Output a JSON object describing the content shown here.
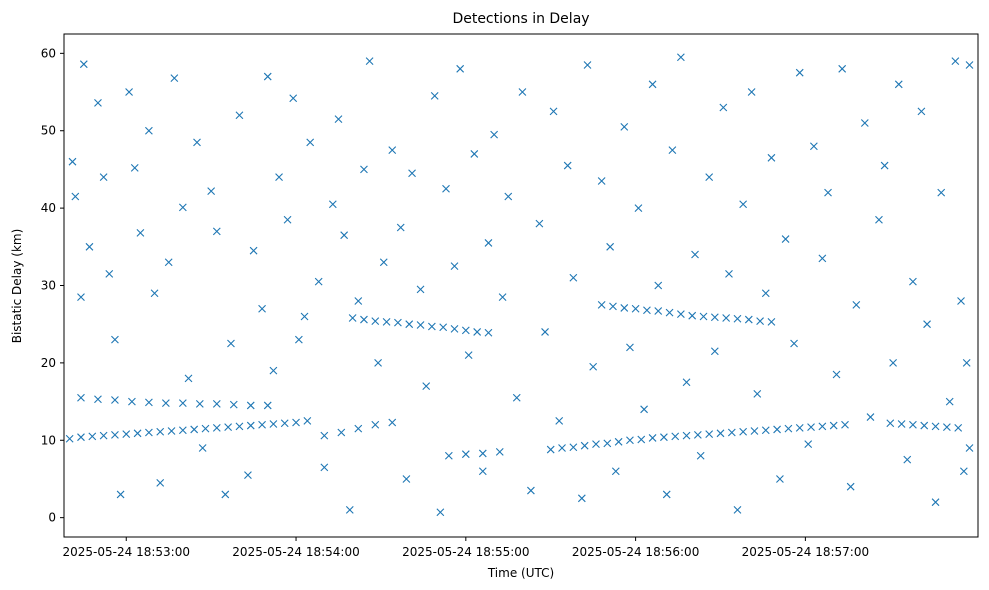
{
  "chart_data": {
    "type": "scatter",
    "title": "Detections in Delay",
    "xlabel": "Time (UTC)",
    "ylabel": "Bistatic Delay (km)",
    "marker": "x",
    "color": "#1f77b4",
    "grid": false,
    "legend": false,
    "x_axis_type": "datetime",
    "xlim": [
      "2025-05-24 18:52:38",
      "2025-05-24 18:58:01"
    ],
    "ylim": [
      -2.5,
      62.5
    ],
    "xticks": [
      "2025-05-24 18:53:00",
      "2025-05-24 18:54:00",
      "2025-05-24 18:55:00",
      "2025-05-24 18:56:00",
      "2025-05-24 18:57:00"
    ],
    "yticks": [
      0,
      10,
      20,
      30,
      40,
      50,
      60
    ],
    "series": [
      {
        "points_description": "Delay vs time detections; tracks plus clutter",
        "points": [
          [
            "2025-05-24 18:52:40",
            10.2
          ],
          [
            "2025-05-24 18:52:44",
            10.4
          ],
          [
            "2025-05-24 18:52:48",
            10.5
          ],
          [
            "2025-05-24 18:52:52",
            10.6
          ],
          [
            "2025-05-24 18:52:56",
            10.7
          ],
          [
            "2025-05-24 18:53:00",
            10.8
          ],
          [
            "2025-05-24 18:53:04",
            10.9
          ],
          [
            "2025-05-24 18:53:08",
            11.0
          ],
          [
            "2025-05-24 18:53:12",
            11.1
          ],
          [
            "2025-05-24 18:53:16",
            11.2
          ],
          [
            "2025-05-24 18:53:20",
            11.3
          ],
          [
            "2025-05-24 18:53:24",
            11.4
          ],
          [
            "2025-05-24 18:53:28",
            11.5
          ],
          [
            "2025-05-24 18:53:32",
            11.6
          ],
          [
            "2025-05-24 18:53:36",
            11.7
          ],
          [
            "2025-05-24 18:53:40",
            11.8
          ],
          [
            "2025-05-24 18:53:44",
            11.9
          ],
          [
            "2025-05-24 18:53:48",
            12.0
          ],
          [
            "2025-05-24 18:53:52",
            12.1
          ],
          [
            "2025-05-24 18:53:56",
            12.2
          ],
          [
            "2025-05-24 18:54:00",
            12.3
          ],
          [
            "2025-05-24 18:54:04",
            12.5
          ],
          [
            "2025-05-24 18:52:44",
            15.5
          ],
          [
            "2025-05-24 18:52:50",
            15.3
          ],
          [
            "2025-05-24 18:52:56",
            15.2
          ],
          [
            "2025-05-24 18:53:02",
            15.0
          ],
          [
            "2025-05-24 18:53:08",
            14.9
          ],
          [
            "2025-05-24 18:53:14",
            14.8
          ],
          [
            "2025-05-24 18:53:20",
            14.8
          ],
          [
            "2025-05-24 18:53:26",
            14.7
          ],
          [
            "2025-05-24 18:53:32",
            14.7
          ],
          [
            "2025-05-24 18:53:38",
            14.6
          ],
          [
            "2025-05-24 18:53:44",
            14.5
          ],
          [
            "2025-05-24 18:53:50",
            14.5
          ],
          [
            "2025-05-24 18:54:20",
            25.8
          ],
          [
            "2025-05-24 18:54:24",
            25.6
          ],
          [
            "2025-05-24 18:54:28",
            25.4
          ],
          [
            "2025-05-24 18:54:32",
            25.3
          ],
          [
            "2025-05-24 18:54:36",
            25.2
          ],
          [
            "2025-05-24 18:54:40",
            25.0
          ],
          [
            "2025-05-24 18:54:44",
            24.9
          ],
          [
            "2025-05-24 18:54:48",
            24.7
          ],
          [
            "2025-05-24 18:54:52",
            24.6
          ],
          [
            "2025-05-24 18:54:56",
            24.4
          ],
          [
            "2025-05-24 18:55:00",
            24.2
          ],
          [
            "2025-05-24 18:55:04",
            24.0
          ],
          [
            "2025-05-24 18:55:08",
            23.9
          ],
          [
            "2025-05-24 18:54:10",
            10.6
          ],
          [
            "2025-05-24 18:54:16",
            11.0
          ],
          [
            "2025-05-24 18:54:22",
            11.5
          ],
          [
            "2025-05-24 18:54:28",
            12.0
          ],
          [
            "2025-05-24 18:54:34",
            12.3
          ],
          [
            "2025-05-24 18:54:54",
            8.0
          ],
          [
            "2025-05-24 18:55:00",
            8.2
          ],
          [
            "2025-05-24 18:55:06",
            8.3
          ],
          [
            "2025-05-24 18:55:12",
            8.5
          ],
          [
            "2025-05-24 18:55:30",
            8.8
          ],
          [
            "2025-05-24 18:55:34",
            9.0
          ],
          [
            "2025-05-24 18:55:38",
            9.1
          ],
          [
            "2025-05-24 18:55:42",
            9.3
          ],
          [
            "2025-05-24 18:55:46",
            9.5
          ],
          [
            "2025-05-24 18:55:50",
            9.6
          ],
          [
            "2025-05-24 18:55:54",
            9.8
          ],
          [
            "2025-05-24 18:55:58",
            10.0
          ],
          [
            "2025-05-24 18:56:02",
            10.1
          ],
          [
            "2025-05-24 18:56:06",
            10.3
          ],
          [
            "2025-05-24 18:56:10",
            10.4
          ],
          [
            "2025-05-24 18:56:14",
            10.5
          ],
          [
            "2025-05-24 18:56:18",
            10.6
          ],
          [
            "2025-05-24 18:56:22",
            10.7
          ],
          [
            "2025-05-24 18:56:26",
            10.8
          ],
          [
            "2025-05-24 18:56:30",
            10.9
          ],
          [
            "2025-05-24 18:56:34",
            11.0
          ],
          [
            "2025-05-24 18:56:38",
            11.1
          ],
          [
            "2025-05-24 18:56:42",
            11.2
          ],
          [
            "2025-05-24 18:56:46",
            11.3
          ],
          [
            "2025-05-24 18:56:50",
            11.4
          ],
          [
            "2025-05-24 18:56:54",
            11.5
          ],
          [
            "2025-05-24 18:56:58",
            11.6
          ],
          [
            "2025-05-24 18:57:02",
            11.7
          ],
          [
            "2025-05-24 18:57:06",
            11.8
          ],
          [
            "2025-05-24 18:57:10",
            11.9
          ],
          [
            "2025-05-24 18:57:14",
            12.0
          ],
          [
            "2025-05-24 18:55:48",
            27.5
          ],
          [
            "2025-05-24 18:55:52",
            27.3
          ],
          [
            "2025-05-24 18:55:56",
            27.1
          ],
          [
            "2025-05-24 18:56:00",
            27.0
          ],
          [
            "2025-05-24 18:56:04",
            26.8
          ],
          [
            "2025-05-24 18:56:08",
            26.7
          ],
          [
            "2025-05-24 18:56:12",
            26.5
          ],
          [
            "2025-05-24 18:56:16",
            26.3
          ],
          [
            "2025-05-24 18:56:20",
            26.1
          ],
          [
            "2025-05-24 18:56:24",
            26.0
          ],
          [
            "2025-05-24 18:56:28",
            25.9
          ],
          [
            "2025-05-24 18:56:32",
            25.8
          ],
          [
            "2025-05-24 18:56:36",
            25.7
          ],
          [
            "2025-05-24 18:56:40",
            25.6
          ],
          [
            "2025-05-24 18:56:44",
            25.4
          ],
          [
            "2025-05-24 18:56:48",
            25.3
          ],
          [
            "2025-05-24 18:57:30",
            12.2
          ],
          [
            "2025-05-24 18:57:34",
            12.1
          ],
          [
            "2025-05-24 18:57:38",
            12.0
          ],
          [
            "2025-05-24 18:57:42",
            11.9
          ],
          [
            "2025-05-24 18:57:46",
            11.8
          ],
          [
            "2025-05-24 18:57:50",
            11.7
          ],
          [
            "2025-05-24 18:57:54",
            11.6
          ],
          [
            "2025-05-24 18:52:41",
            46.0
          ],
          [
            "2025-05-24 18:52:42",
            41.5
          ],
          [
            "2025-05-24 18:52:44",
            28.5
          ],
          [
            "2025-05-24 18:52:45",
            58.6
          ],
          [
            "2025-05-24 18:52:47",
            35.0
          ],
          [
            "2025-05-24 18:52:50",
            53.6
          ],
          [
            "2025-05-24 18:52:52",
            44.0
          ],
          [
            "2025-05-24 18:52:54",
            31.5
          ],
          [
            "2025-05-24 18:52:56",
            23.0
          ],
          [
            "2025-05-24 18:52:58",
            3.0
          ],
          [
            "2025-05-24 18:53:01",
            55.0
          ],
          [
            "2025-05-24 18:53:03",
            45.2
          ],
          [
            "2025-05-24 18:53:05",
            36.8
          ],
          [
            "2025-05-24 18:53:08",
            50.0
          ],
          [
            "2025-05-24 18:53:10",
            29.0
          ],
          [
            "2025-05-24 18:53:12",
            4.5
          ],
          [
            "2025-05-24 18:53:15",
            33.0
          ],
          [
            "2025-05-24 18:53:17",
            56.8
          ],
          [
            "2025-05-24 18:53:20",
            40.1
          ],
          [
            "2025-05-24 18:53:22",
            18.0
          ],
          [
            "2025-05-24 18:53:25",
            48.5
          ],
          [
            "2025-05-24 18:53:27",
            9.0
          ],
          [
            "2025-05-24 18:53:30",
            42.2
          ],
          [
            "2025-05-24 18:53:32",
            37.0
          ],
          [
            "2025-05-24 18:53:35",
            3.0
          ],
          [
            "2025-05-24 18:53:37",
            22.5
          ],
          [
            "2025-05-24 18:53:40",
            52.0
          ],
          [
            "2025-05-24 18:53:43",
            5.5
          ],
          [
            "2025-05-24 18:53:45",
            34.5
          ],
          [
            "2025-05-24 18:53:48",
            27.0
          ],
          [
            "2025-05-24 18:53:50",
            57.0
          ],
          [
            "2025-05-24 18:53:52",
            19.0
          ],
          [
            "2025-05-24 18:53:54",
            44.0
          ],
          [
            "2025-05-24 18:53:57",
            38.5
          ],
          [
            "2025-05-24 18:53:59",
            54.2
          ],
          [
            "2025-05-24 18:54:01",
            23.0
          ],
          [
            "2025-05-24 18:54:03",
            26.0
          ],
          [
            "2025-05-24 18:54:05",
            48.5
          ],
          [
            "2025-05-24 18:54:08",
            30.5
          ],
          [
            "2025-05-24 18:54:10",
            6.5
          ],
          [
            "2025-05-24 18:54:13",
            40.5
          ],
          [
            "2025-05-24 18:54:15",
            51.5
          ],
          [
            "2025-05-24 18:54:17",
            36.5
          ],
          [
            "2025-05-24 18:54:19",
            1.0
          ],
          [
            "2025-05-24 18:54:22",
            28.0
          ],
          [
            "2025-05-24 18:54:24",
            45.0
          ],
          [
            "2025-05-24 18:54:26",
            59.0
          ],
          [
            "2025-05-24 18:54:29",
            20.0
          ],
          [
            "2025-05-24 18:54:31",
            33.0
          ],
          [
            "2025-05-24 18:54:34",
            47.5
          ],
          [
            "2025-05-24 18:54:37",
            37.5
          ],
          [
            "2025-05-24 18:54:39",
            5.0
          ],
          [
            "2025-05-24 18:54:41",
            44.5
          ],
          [
            "2025-05-24 18:54:44",
            29.5
          ],
          [
            "2025-05-24 18:54:46",
            17.0
          ],
          [
            "2025-05-24 18:54:49",
            54.5
          ],
          [
            "2025-05-24 18:54:51",
            0.7
          ],
          [
            "2025-05-24 18:54:53",
            42.5
          ],
          [
            "2025-05-24 18:54:56",
            32.5
          ],
          [
            "2025-05-24 18:54:58",
            58.0
          ],
          [
            "2025-05-24 18:55:01",
            21.0
          ],
          [
            "2025-05-24 18:55:03",
            47.0
          ],
          [
            "2025-05-24 18:55:06",
            6.0
          ],
          [
            "2025-05-24 18:55:08",
            35.5
          ],
          [
            "2025-05-24 18:55:10",
            49.5
          ],
          [
            "2025-05-24 18:55:13",
            28.5
          ],
          [
            "2025-05-24 18:55:15",
            41.5
          ],
          [
            "2025-05-24 18:55:18",
            15.5
          ],
          [
            "2025-05-24 18:55:20",
            55.0
          ],
          [
            "2025-05-24 18:55:23",
            3.5
          ],
          [
            "2025-05-24 18:55:26",
            38.0
          ],
          [
            "2025-05-24 18:55:28",
            24.0
          ],
          [
            "2025-05-24 18:55:31",
            52.5
          ],
          [
            "2025-05-24 18:55:33",
            12.5
          ],
          [
            "2025-05-24 18:55:36",
            45.5
          ],
          [
            "2025-05-24 18:55:38",
            31.0
          ],
          [
            "2025-05-24 18:55:41",
            2.5
          ],
          [
            "2025-05-24 18:55:43",
            58.5
          ],
          [
            "2025-05-24 18:55:45",
            19.5
          ],
          [
            "2025-05-24 18:55:48",
            43.5
          ],
          [
            "2025-05-24 18:55:51",
            35.0
          ],
          [
            "2025-05-24 18:55:53",
            6.0
          ],
          [
            "2025-05-24 18:55:56",
            50.5
          ],
          [
            "2025-05-24 18:55:58",
            22.0
          ],
          [
            "2025-05-24 18:56:01",
            40.0
          ],
          [
            "2025-05-24 18:56:03",
            14.0
          ],
          [
            "2025-05-24 18:56:06",
            56.0
          ],
          [
            "2025-05-24 18:56:08",
            30.0
          ],
          [
            "2025-05-24 18:56:11",
            3.0
          ],
          [
            "2025-05-24 18:56:13",
            47.5
          ],
          [
            "2025-05-24 18:56:16",
            59.5
          ],
          [
            "2025-05-24 18:56:18",
            17.5
          ],
          [
            "2025-05-24 18:56:21",
            34.0
          ],
          [
            "2025-05-24 18:56:23",
            8.0
          ],
          [
            "2025-05-24 18:56:26",
            44.0
          ],
          [
            "2025-05-24 18:56:28",
            21.5
          ],
          [
            "2025-05-24 18:56:31",
            53.0
          ],
          [
            "2025-05-24 18:56:33",
            31.5
          ],
          [
            "2025-05-24 18:56:36",
            1.0
          ],
          [
            "2025-05-24 18:56:38",
            40.5
          ],
          [
            "2025-05-24 18:56:41",
            55.0
          ],
          [
            "2025-05-24 18:56:43",
            16.0
          ],
          [
            "2025-05-24 18:56:46",
            29.0
          ],
          [
            "2025-05-24 18:56:48",
            46.5
          ],
          [
            "2025-05-24 18:56:51",
            5.0
          ],
          [
            "2025-05-24 18:56:53",
            36.0
          ],
          [
            "2025-05-24 18:56:56",
            22.5
          ],
          [
            "2025-05-24 18:56:58",
            57.5
          ],
          [
            "2025-05-24 18:57:01",
            9.5
          ],
          [
            "2025-05-24 18:57:03",
            48.0
          ],
          [
            "2025-05-24 18:57:06",
            33.5
          ],
          [
            "2025-05-24 18:57:08",
            42.0
          ],
          [
            "2025-05-24 18:57:11",
            18.5
          ],
          [
            "2025-05-24 18:57:13",
            58.0
          ],
          [
            "2025-05-24 18:57:16",
            4.0
          ],
          [
            "2025-05-24 18:57:18",
            27.5
          ],
          [
            "2025-05-24 18:57:21",
            51.0
          ],
          [
            "2025-05-24 18:57:23",
            13.0
          ],
          [
            "2025-05-24 18:57:26",
            38.5
          ],
          [
            "2025-05-24 18:57:28",
            45.5
          ],
          [
            "2025-05-24 18:57:31",
            20.0
          ],
          [
            "2025-05-24 18:57:33",
            56.0
          ],
          [
            "2025-05-24 18:57:36",
            7.5
          ],
          [
            "2025-05-24 18:57:38",
            30.5
          ],
          [
            "2025-05-24 18:57:41",
            52.5
          ],
          [
            "2025-05-24 18:57:43",
            25.0
          ],
          [
            "2025-05-24 18:57:46",
            2.0
          ],
          [
            "2025-05-24 18:57:48",
            42.0
          ],
          [
            "2025-05-24 18:57:51",
            15.0
          ],
          [
            "2025-05-24 18:57:53",
            59.0
          ],
          [
            "2025-05-24 18:57:55",
            28.0
          ],
          [
            "2025-05-24 18:57:57",
            20.0
          ],
          [
            "2025-05-24 18:57:58",
            58.5
          ],
          [
            "2025-05-24 18:57:58",
            9.0
          ],
          [
            "2025-05-24 18:57:56",
            6.0
          ]
        ]
      }
    ]
  }
}
